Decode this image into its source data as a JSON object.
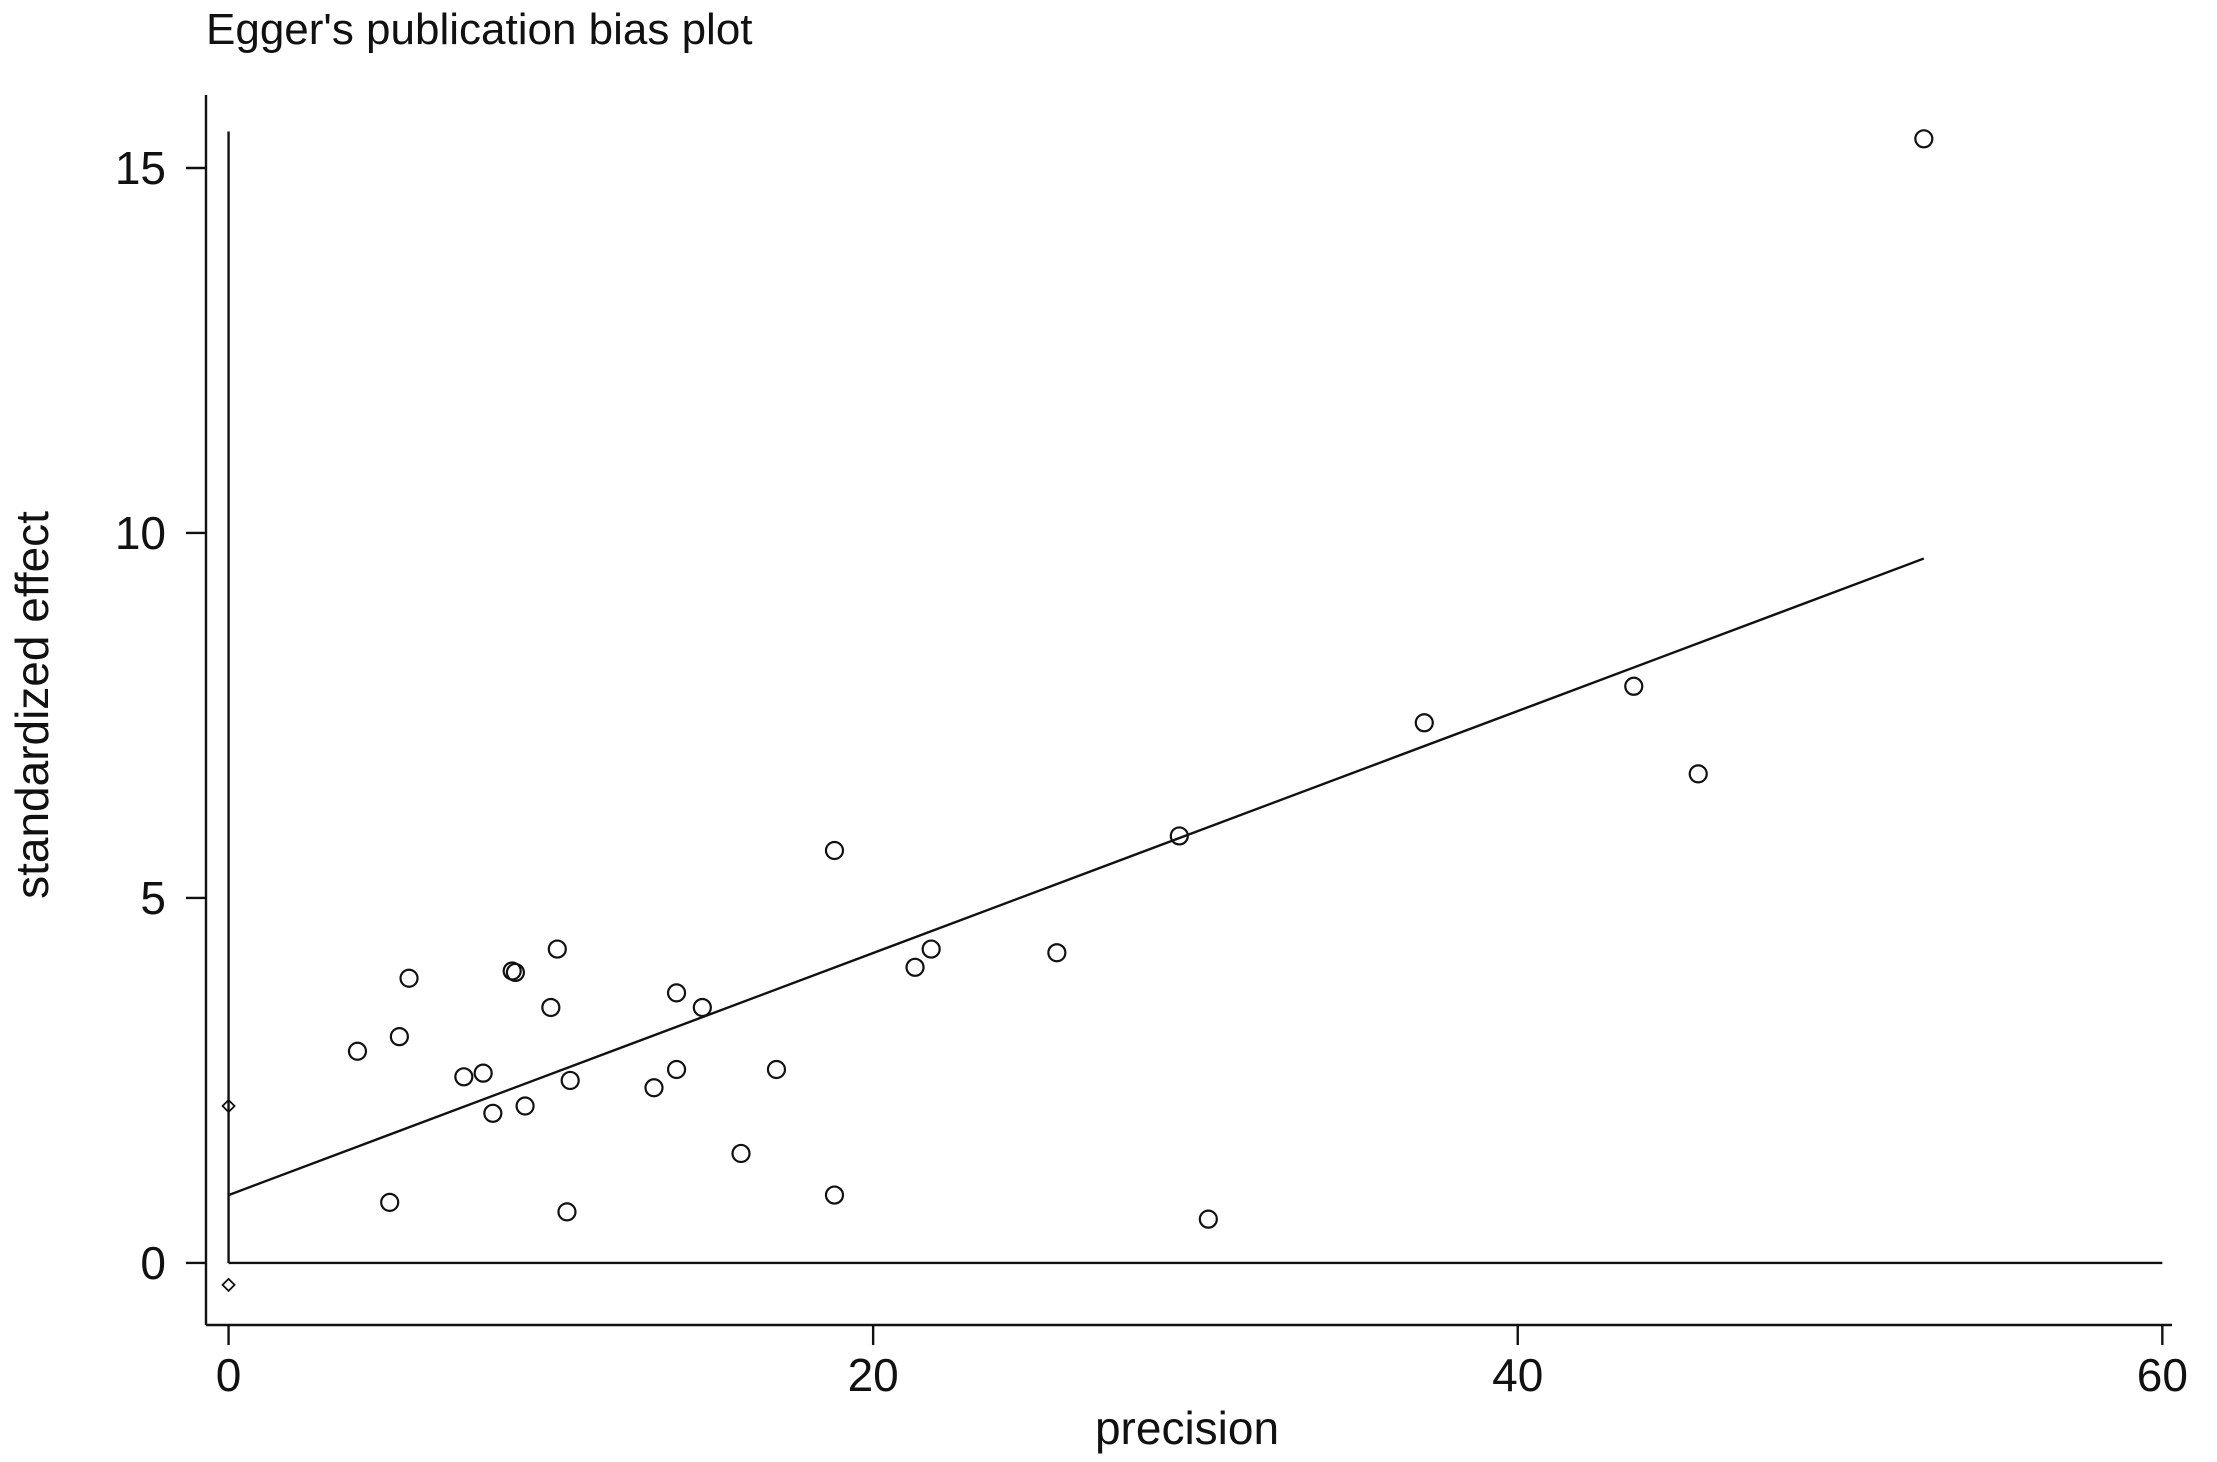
{
  "chart_data": {
    "type": "scatter",
    "title": "Egger's publication bias plot",
    "xlabel": "precision",
    "ylabel": "standardized effect",
    "xlim": [
      -0.7,
      60.3
    ],
    "ylim": [
      -0.85,
      16
    ],
    "xticks": [
      0,
      20,
      40,
      60
    ],
    "yticks": [
      0,
      5,
      10,
      15
    ],
    "grid": false,
    "points": [
      {
        "x": 4.0,
        "y": 2.9
      },
      {
        "x": 5.0,
        "y": 0.83
      },
      {
        "x": 5.3,
        "y": 3.1
      },
      {
        "x": 5.6,
        "y": 3.9
      },
      {
        "x": 7.3,
        "y": 2.55
      },
      {
        "x": 7.9,
        "y": 2.6
      },
      {
        "x": 8.2,
        "y": 2.05
      },
      {
        "x": 8.8,
        "y": 4.0
      },
      {
        "x": 8.9,
        "y": 3.98
      },
      {
        "x": 9.2,
        "y": 2.15
      },
      {
        "x": 10.0,
        "y": 3.5
      },
      {
        "x": 10.2,
        "y": 4.3
      },
      {
        "x": 10.5,
        "y": 0.7
      },
      {
        "x": 10.6,
        "y": 2.5
      },
      {
        "x": 13.2,
        "y": 2.4
      },
      {
        "x": 13.9,
        "y": 3.7
      },
      {
        "x": 13.9,
        "y": 2.65
      },
      {
        "x": 14.7,
        "y": 3.5
      },
      {
        "x": 15.9,
        "y": 1.5
      },
      {
        "x": 17.0,
        "y": 2.65
      },
      {
        "x": 18.8,
        "y": 5.65
      },
      {
        "x": 18.8,
        "y": 0.93
      },
      {
        "x": 21.3,
        "y": 4.05
      },
      {
        "x": 21.8,
        "y": 4.3
      },
      {
        "x": 25.7,
        "y": 4.25
      },
      {
        "x": 29.5,
        "y": 5.85
      },
      {
        "x": 30.4,
        "y": 0.6
      },
      {
        "x": 37.1,
        "y": 7.4
      },
      {
        "x": 43.6,
        "y": 7.9
      },
      {
        "x": 45.6,
        "y": 6.7
      },
      {
        "x": 52.6,
        "y": 15.4
      }
    ],
    "intercept_markers": [
      {
        "x": 0,
        "y": 2.15
      },
      {
        "x": 0,
        "y": -0.3
      }
    ],
    "regression_line": {
      "x": [
        0,
        52.6
      ],
      "y": [
        0.93,
        9.65
      ]
    },
    "reference_lines": {
      "vertical_x": 0,
      "vertical_y_range": [
        0,
        15.5
      ],
      "horizontal_y": 0,
      "horizontal_x_range": [
        0,
        60
      ]
    }
  }
}
